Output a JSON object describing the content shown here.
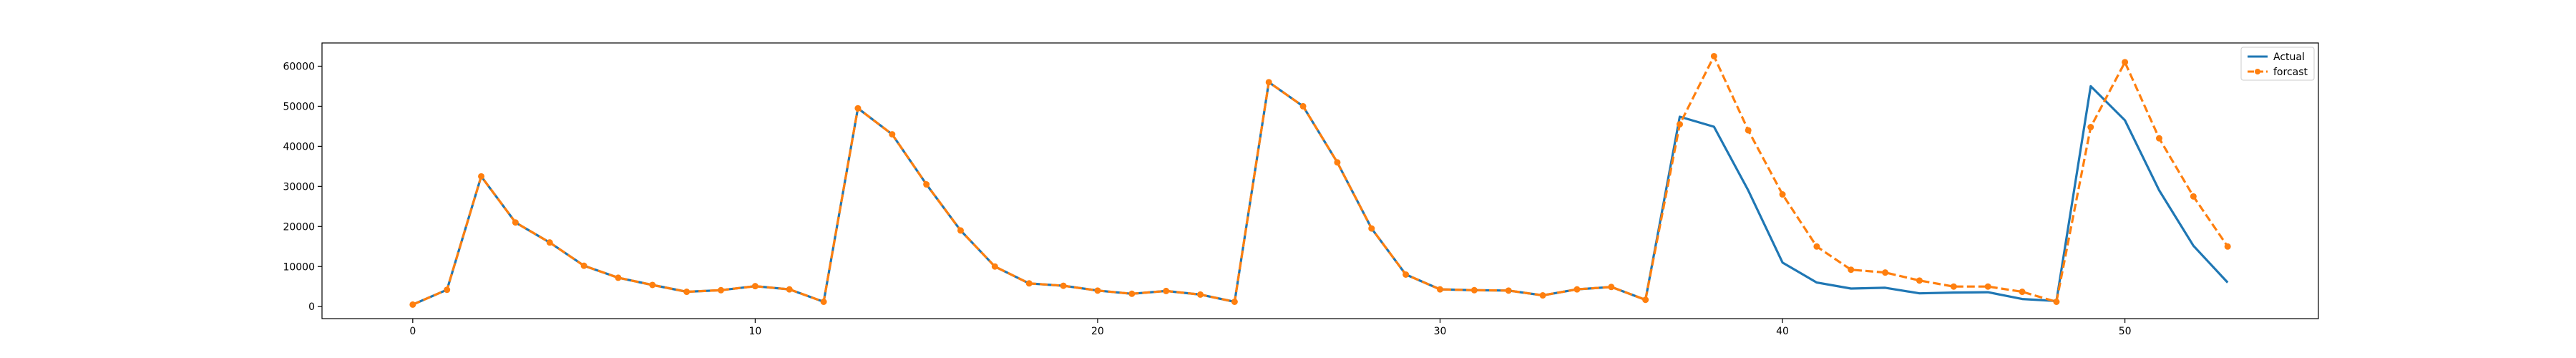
{
  "chart_data": {
    "type": "line",
    "title": "",
    "xlabel": "",
    "ylabel": "",
    "xlim": [
      -2.65,
      55.65
    ],
    "ylim": [
      -3000,
      65800
    ],
    "xticks": [
      0,
      10,
      20,
      30,
      40,
      50
    ],
    "yticks": [
      0,
      10000,
      20000,
      30000,
      40000,
      50000,
      60000
    ],
    "grid": false,
    "legend_position": "top-right",
    "series": [
      {
        "name": "Actual",
        "color": "#1f77b4",
        "style": "solid",
        "marker": "none",
        "x": [
          0,
          1,
          2,
          3,
          4,
          5,
          6,
          7,
          8,
          9,
          10,
          11,
          12,
          13,
          14,
          15,
          16,
          17,
          18,
          19,
          20,
          21,
          22,
          23,
          24,
          25,
          26,
          27,
          28,
          29,
          30,
          31,
          32,
          33,
          34,
          35,
          36,
          37,
          38,
          39,
          40,
          41,
          42,
          43,
          44,
          45,
          46,
          47,
          48,
          49,
          50,
          51,
          52,
          53
        ],
        "y": [
          500,
          4200,
          32500,
          21000,
          16000,
          10200,
          7200,
          5400,
          3700,
          4100,
          5100,
          4300,
          1200,
          49500,
          43000,
          30500,
          19000,
          10000,
          5800,
          5200,
          4000,
          3200,
          3900,
          3000,
          1200,
          56000,
          50000,
          36000,
          19500,
          8000,
          4300,
          4100,
          4000,
          2800,
          4300,
          4900,
          1700,
          47400,
          44900,
          29000,
          11000,
          6000,
          4500,
          4700,
          3300,
          3500,
          3600,
          1900,
          1400,
          55000,
          46500,
          29000,
          15200,
          6000
        ]
      },
      {
        "name": "forcast",
        "color": "#ff7f0e",
        "style": "dashed",
        "marker": "circle",
        "x": [
          0,
          1,
          2,
          3,
          4,
          5,
          6,
          7,
          8,
          9,
          10,
          11,
          12,
          13,
          14,
          15,
          16,
          17,
          18,
          19,
          20,
          21,
          22,
          23,
          24,
          25,
          26,
          27,
          28,
          29,
          30,
          31,
          32,
          33,
          34,
          35,
          36,
          37,
          38,
          39,
          40,
          41,
          42,
          43,
          44,
          45,
          46,
          47,
          48,
          49,
          50,
          51,
          52,
          53
        ],
        "y": [
          500,
          4200,
          32500,
          21000,
          16000,
          10200,
          7200,
          5400,
          3700,
          4100,
          5100,
          4300,
          1200,
          49500,
          43000,
          30500,
          19000,
          10000,
          5800,
          5200,
          4000,
          3200,
          3900,
          3000,
          1200,
          56000,
          50000,
          36000,
          19500,
          8000,
          4300,
          4100,
          4000,
          2800,
          4300,
          4900,
          1700,
          45500,
          62500,
          44000,
          28000,
          15000,
          9200,
          8500,
          6500,
          5000,
          5000,
          3700,
          1200,
          44800,
          61000,
          42000,
          27500,
          15000
        ]
      }
    ]
  }
}
